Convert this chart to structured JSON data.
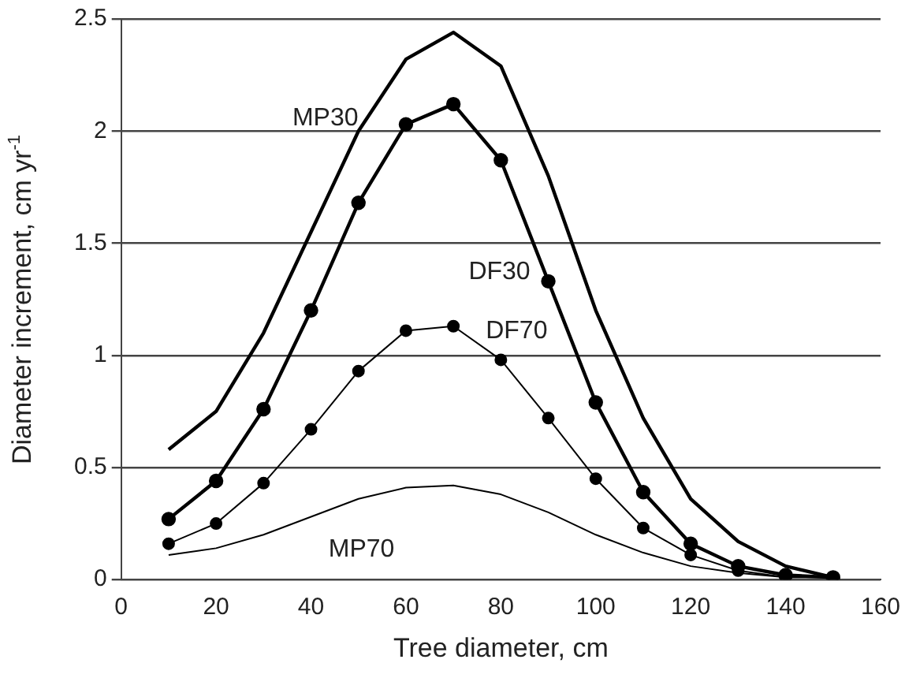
{
  "chart_data": {
    "type": "line",
    "xlabel": "Tree diameter, cm",
    "ylabel": "Diameter increment, cm yr$^{-1}$",
    "x": [
      10,
      20,
      30,
      40,
      50,
      60,
      70,
      80,
      90,
      100,
      110,
      120,
      130,
      140,
      150
    ],
    "series": [
      {
        "name": "MP30",
        "color": "#000000",
        "marker": "none",
        "values": [
          0.58,
          0.75,
          1.1,
          1.55,
          2.0,
          2.32,
          2.44,
          2.29,
          1.8,
          1.2,
          0.72,
          0.36,
          0.17,
          0.06,
          0.01
        ]
      },
      {
        "name": "DF30",
        "color": "#000000",
        "marker": "circle",
        "values": [
          0.27,
          0.44,
          0.76,
          1.2,
          1.68,
          2.03,
          2.12,
          1.87,
          1.33,
          0.79,
          0.39,
          0.16,
          0.06,
          0.02,
          0.01
        ]
      },
      {
        "name": "DF70",
        "color": "#000000",
        "marker": "circle",
        "values": [
          0.16,
          0.25,
          0.43,
          0.67,
          0.93,
          1.11,
          1.13,
          0.98,
          0.72,
          0.45,
          0.23,
          0.11,
          0.04,
          0.01,
          0.01
        ]
      },
      {
        "name": "MP70",
        "color": "#000000",
        "marker": "none",
        "values": [
          0.11,
          0.14,
          0.2,
          0.28,
          0.36,
          0.41,
          0.42,
          0.38,
          0.3,
          0.2,
          0.12,
          0.06,
          0.03,
          0.01,
          0.01
        ]
      }
    ],
    "xlim": [
      0,
      160
    ],
    "xticks": [
      0,
      20,
      40,
      60,
      80,
      100,
      120,
      140,
      160
    ],
    "ylim": [
      0,
      2.5
    ],
    "yticks": [
      0,
      0.5,
      1,
      1.5,
      2,
      2.5
    ],
    "grid": "y",
    "legend": false
  }
}
